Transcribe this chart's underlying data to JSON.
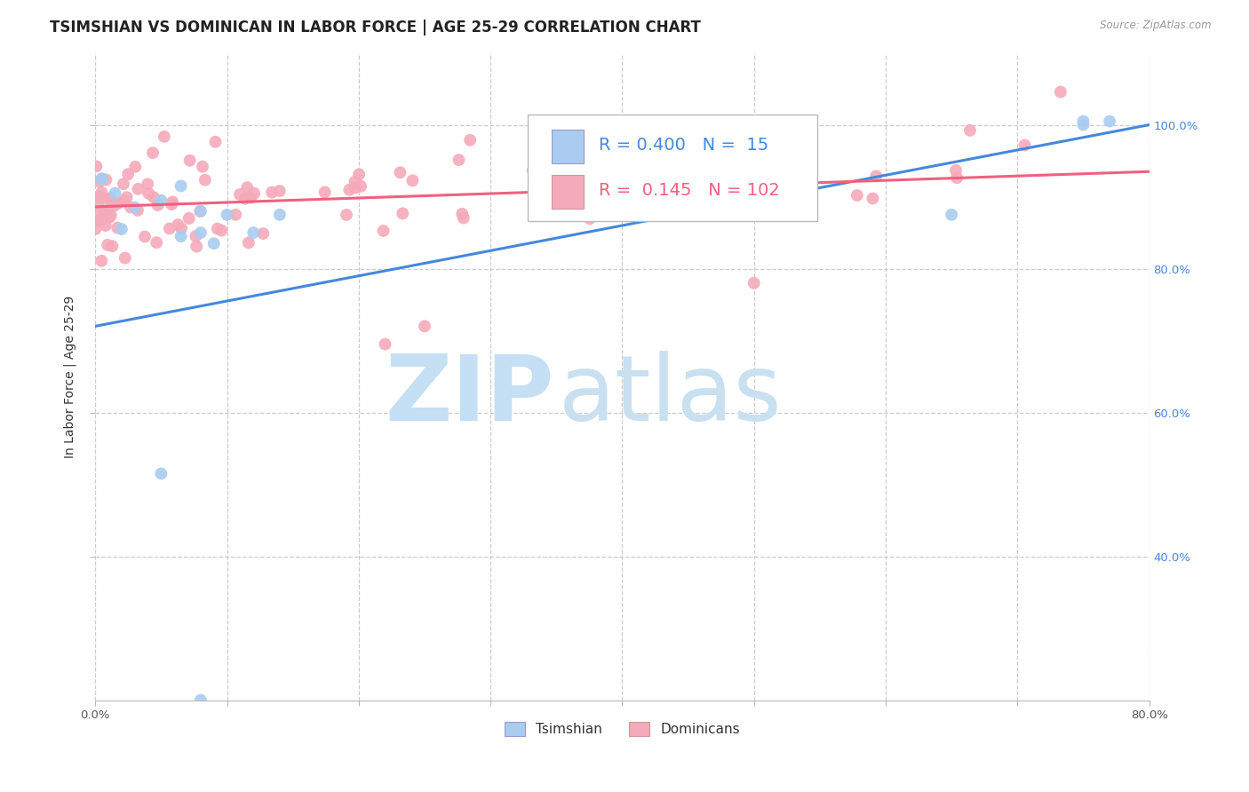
{
  "title": "TSIMSHIAN VS DOMINICAN IN LABOR FORCE | AGE 25-29 CORRELATION CHART",
  "source_text": "Source: ZipAtlas.com",
  "ylabel": "In Labor Force | Age 25-29",
  "xlim": [
    0.0,
    0.8
  ],
  "ylim": [
    0.2,
    1.1
  ],
  "background_color": "#ffffff",
  "watermark_color_zip": "#c5dff5",
  "watermark_color_atlas": "#c8e0f0",
  "legend_R_tsimshian": "0.400",
  "legend_N_tsimshian": "15",
  "legend_R_dominican": "0.145",
  "legend_N_dominican": "102",
  "tsimshian_color": "#aaccf0",
  "dominican_color": "#f5aaba",
  "tsimshian_line_color": "#4488dd",
  "dominican_line_color": "#f06080",
  "grid_color": "#cccccc",
  "title_fontsize": 12,
  "axis_label_fontsize": 10,
  "right_tick_color": "#4488dd"
}
